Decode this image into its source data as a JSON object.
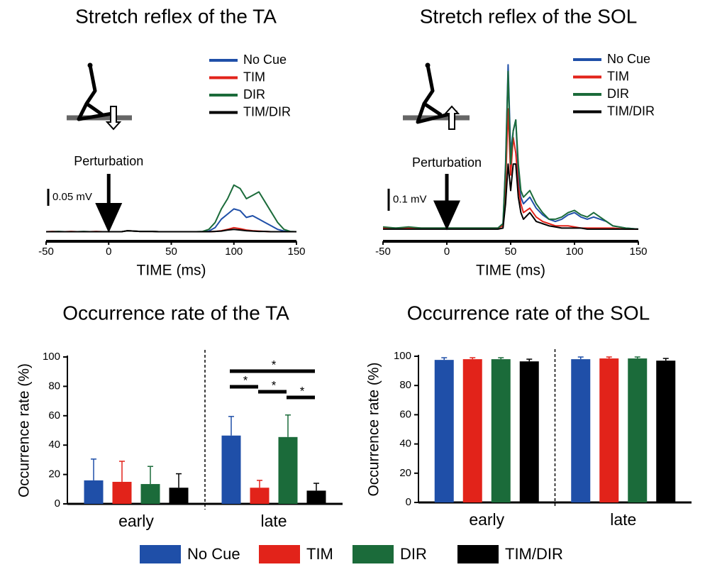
{
  "chart_data": [
    {
      "type": "line",
      "title": "Stretch reflex of the TA",
      "xlabel": "TIME (ms)",
      "xlim": [
        -50,
        150
      ],
      "xticks": [
        -50,
        0,
        50,
        100,
        150
      ],
      "ylim": [
        -0.025,
        0.1625
      ],
      "scale_bar": {
        "value": 0.05,
        "label": "0.05 mV"
      },
      "annotation": {
        "text": "Perturbation",
        "x": 0
      },
      "x": [
        -50,
        -45,
        -40,
        -35,
        -30,
        -25,
        -20,
        -15,
        -10,
        -5,
        0,
        5,
        10,
        15,
        20,
        25,
        30,
        35,
        40,
        45,
        50,
        55,
        60,
        65,
        70,
        75,
        80,
        85,
        90,
        95,
        100,
        105,
        110,
        115,
        120,
        125,
        130,
        135,
        140,
        145,
        150
      ],
      "series": [
        {
          "name": "No Cue",
          "color": "#1f4fa8",
          "values": [
            0.003,
            0.003,
            0.003,
            0.003,
            0.003,
            0.003,
            0.003,
            0.003,
            0.003,
            0.003,
            0.003,
            0.003,
            0.003,
            0.006,
            0.005,
            0.004,
            0.004,
            0.004,
            0.003,
            0.003,
            0.003,
            0.003,
            0.003,
            0.003,
            0.003,
            0.003,
            0.005,
            0.015,
            0.04,
            0.055,
            0.07,
            0.065,
            0.045,
            0.05,
            0.04,
            0.03,
            0.02,
            0.01,
            0.005,
            0.003,
            0.003
          ]
        },
        {
          "name": "TIM",
          "color": "#e2231a",
          "values": [
            0.003,
            0.004,
            0.003,
            0.003,
            0.004,
            0.003,
            0.003,
            0.003,
            0.004,
            0.003,
            0.003,
            0.003,
            0.003,
            0.006,
            0.005,
            0.004,
            0.004,
            0.004,
            0.003,
            0.003,
            0.003,
            0.003,
            0.003,
            0.003,
            0.003,
            0.003,
            0.003,
            0.004,
            0.006,
            0.01,
            0.015,
            0.012,
            0.008,
            0.006,
            0.005,
            0.004,
            0.003,
            0.003,
            0.003,
            0.003,
            0.003
          ]
        },
        {
          "name": "DIR",
          "color": "#1b6b3a",
          "values": [
            0.003,
            0.003,
            0.004,
            0.003,
            0.003,
            0.003,
            0.004,
            0.003,
            0.003,
            0.003,
            0.003,
            0.003,
            0.003,
            0.006,
            0.005,
            0.004,
            0.004,
            0.004,
            0.003,
            0.003,
            0.003,
            0.003,
            0.003,
            0.003,
            0.003,
            0.004,
            0.01,
            0.03,
            0.07,
            0.1,
            0.14,
            0.13,
            0.1,
            0.11,
            0.12,
            0.09,
            0.06,
            0.03,
            0.01,
            0.004,
            0.003
          ]
        },
        {
          "name": "TIM/DIR",
          "color": "#000000",
          "values": [
            0.003,
            0.003,
            0.003,
            0.003,
            0.003,
            0.003,
            0.003,
            0.003,
            0.003,
            0.003,
            0.003,
            0.003,
            0.003,
            0.006,
            0.005,
            0.004,
            0.004,
            0.004,
            0.003,
            0.003,
            0.003,
            0.003,
            0.003,
            0.003,
            0.003,
            0.003,
            0.003,
            0.004,
            0.005,
            0.008,
            0.01,
            0.008,
            0.006,
            0.005,
            0.004,
            0.004,
            0.003,
            0.003,
            0.003,
            0.003,
            0.003
          ]
        }
      ]
    },
    {
      "type": "line",
      "title": "Stretch reflex of the SOL",
      "xlabel": "TIME (ms)",
      "xlim": [
        -50,
        150
      ],
      "xticks": [
        -50,
        0,
        50,
        100,
        150
      ],
      "ylim": [
        -0.05,
        0.77
      ],
      "scale_bar": {
        "value": 0.1,
        "label": "0.1 mV"
      },
      "annotation": {
        "text": "Perturbation",
        "x": 0
      },
      "x": [
        -50,
        -40,
        -30,
        -20,
        -10,
        0,
        10,
        20,
        30,
        40,
        44,
        46,
        48,
        50,
        52,
        54,
        56,
        58,
        60,
        65,
        70,
        75,
        80,
        85,
        90,
        95,
        100,
        105,
        110,
        115,
        120,
        125,
        130,
        140,
        150
      ],
      "series": [
        {
          "name": "No Cue",
          "color": "#1f4fa8",
          "values": [
            0.01,
            0.01,
            0.01,
            0.01,
            0.01,
            0.01,
            0.01,
            0.01,
            0.01,
            0.01,
            0.03,
            0.3,
            0.75,
            0.35,
            0.45,
            0.5,
            0.25,
            0.15,
            0.12,
            0.15,
            0.1,
            0.07,
            0.05,
            0.04,
            0.05,
            0.07,
            0.08,
            0.06,
            0.05,
            0.06,
            0.05,
            0.04,
            0.02,
            0.01,
            0.005
          ]
        },
        {
          "name": "TIM",
          "color": "#e2231a",
          "values": [
            0.01,
            0.01,
            0.01,
            0.01,
            0.01,
            0.01,
            0.01,
            0.01,
            0.01,
            0.01,
            0.02,
            0.2,
            0.55,
            0.25,
            0.42,
            0.35,
            0.2,
            0.12,
            0.08,
            0.1,
            0.06,
            0.04,
            0.03,
            0.02,
            0.02,
            0.02,
            0.015,
            0.01,
            0.01,
            0.01,
            0.01,
            0.01,
            0.01,
            0.005,
            0.005
          ]
        },
        {
          "name": "DIR",
          "color": "#1b6b3a",
          "values": [
            0.015,
            0.01,
            0.015,
            0.01,
            0.01,
            0.01,
            0.01,
            0.01,
            0.01,
            0.01,
            0.03,
            0.28,
            0.72,
            0.3,
            0.45,
            0.5,
            0.3,
            0.18,
            0.15,
            0.18,
            0.12,
            0.08,
            0.05,
            0.05,
            0.06,
            0.08,
            0.09,
            0.07,
            0.06,
            0.08,
            0.06,
            0.04,
            0.02,
            0.01,
            0.005
          ]
        },
        {
          "name": "TIM/DIR",
          "color": "#000000",
          "values": [
            0.005,
            0.005,
            0.005,
            0.005,
            0.005,
            0.005,
            0.005,
            0.005,
            0.005,
            0.005,
            0.01,
            0.12,
            0.3,
            0.18,
            0.3,
            0.3,
            0.15,
            0.08,
            0.05,
            0.08,
            0.04,
            0.03,
            0.02,
            0.015,
            0.01,
            0.01,
            0.01,
            0.01,
            0.005,
            0.005,
            0.005,
            0.005,
            0.005,
            0.005,
            0.005
          ]
        }
      ]
    },
    {
      "type": "bar",
      "title": "Occurrence rate of the TA",
      "ylabel": "Occurrence rate (%)",
      "categories": [
        "early",
        "late"
      ],
      "ylim": [
        0,
        100
      ],
      "yticks": [
        0,
        20,
        40,
        60,
        80,
        100
      ],
      "series": [
        {
          "name": "No Cue",
          "color": "#1f4fa8",
          "values": [
            16,
            46.5
          ],
          "errors": [
            14.5,
            13
          ]
        },
        {
          "name": "TIM",
          "color": "#e2231a",
          "values": [
            15,
            11
          ],
          "errors": [
            14,
            5
          ]
        },
        {
          "name": "DIR",
          "color": "#1b6b3a",
          "values": [
            13.5,
            45.5
          ],
          "errors": [
            12,
            15
          ]
        },
        {
          "name": "TIM/DIR",
          "color": "#000000",
          "values": [
            11,
            9
          ],
          "errors": [
            9.5,
            5
          ]
        }
      ],
      "significance": [
        {
          "pair": [
            "No Cue",
            "TIM/DIR"
          ],
          "label": "*"
        },
        {
          "pair": [
            "No Cue",
            "TIM"
          ],
          "label": "*"
        },
        {
          "pair": [
            "TIM",
            "DIR"
          ],
          "label": "*"
        },
        {
          "pair": [
            "DIR",
            "TIM/DIR"
          ],
          "label": "*"
        }
      ]
    },
    {
      "type": "bar",
      "title": "Occurrence rate of the SOL",
      "ylabel": "Occurrence rate (%)",
      "categories": [
        "early",
        "late"
      ],
      "ylim": [
        0,
        100
      ],
      "yticks": [
        0,
        20,
        40,
        60,
        80,
        100
      ],
      "series": [
        {
          "color": "#1f4fa8",
          "values": [
            97.5,
            98
          ],
          "errors": [
            1.5,
            1.5
          ]
        },
        {
          "color": "#e2231a",
          "values": [
            98,
            98.5
          ],
          "errors": [
            1,
            1
          ]
        },
        {
          "color": "#1b6b3a",
          "values": [
            98,
            98.5
          ],
          "errors": [
            1,
            1
          ]
        },
        {
          "color": "#000000",
          "values": [
            96.5,
            97
          ],
          "errors": [
            1.5,
            1.5
          ]
        }
      ]
    }
  ]
}
